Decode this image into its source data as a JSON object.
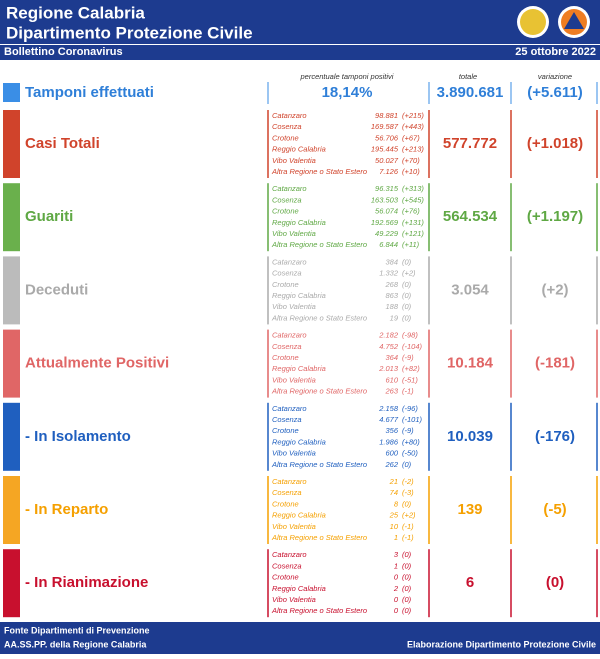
{
  "header": {
    "title_line1": "Regione Calabria",
    "title_line2": "Dipartimento Protezione Civile",
    "subtitle": "Bollettino Coronavirus",
    "date": "25 ottobre 2022"
  },
  "columns": {
    "pct_label": "percentuale tamponi positivi",
    "total_label": "totale",
    "variation_label": "variazione"
  },
  "tamponi": {
    "label": "Tamponi effettuati",
    "pct": "18,14%",
    "total": "3.890.681",
    "variation": "(+5.611)"
  },
  "sections": [
    {
      "label": "Casi Totali",
      "rows": [
        [
          "Catanzaro",
          "98.881",
          "(+215)"
        ],
        [
          "Cosenza",
          "169.587",
          "(+443)"
        ],
        [
          "Crotone",
          "56.706",
          "(+67)"
        ],
        [
          "Reggio Calabria",
          "195.445",
          "(+213)"
        ],
        [
          "Vibo Valentia",
          "50.027",
          "(+70)"
        ],
        [
          "Altra Regione o Stato Estero",
          "7.126",
          "(+10)"
        ]
      ],
      "total": "577.772",
      "variation": "(+1.018)"
    },
    {
      "label": "Guariti",
      "rows": [
        [
          "Catanzaro",
          "96.315",
          "(+313)"
        ],
        [
          "Cosenza",
          "163.503",
          "(+545)"
        ],
        [
          "Crotone",
          "56.074",
          "(+76)"
        ],
        [
          "Reggio Calabria",
          "192.569",
          "(+131)"
        ],
        [
          "Vibo Valentia",
          "49.229",
          "(+121)"
        ],
        [
          "Altra Regione o Stato Estero",
          "6.844",
          "(+11)"
        ]
      ],
      "total": "564.534",
      "variation": "(+1.197)"
    },
    {
      "label": "Deceduti",
      "rows": [
        [
          "Catanzaro",
          "384",
          "(0)"
        ],
        [
          "Cosenza",
          "1.332",
          "(+2)"
        ],
        [
          "Crotone",
          "268",
          "(0)"
        ],
        [
          "Reggio Calabria",
          "863",
          "(0)"
        ],
        [
          "Vibo Valentia",
          "188",
          "(0)"
        ],
        [
          "Altra Regione o Stato Estero",
          "19",
          "(0)"
        ]
      ],
      "total": "3.054",
      "variation": "(+2)"
    },
    {
      "label": "Attualmente Positivi",
      "rows": [
        [
          "Catanzaro",
          "2.182",
          "(-98)"
        ],
        [
          "Cosenza",
          "4.752",
          "(-104)"
        ],
        [
          "Crotone",
          "364",
          "(-9)"
        ],
        [
          "Reggio Calabria",
          "2.013",
          "(+82)"
        ],
        [
          "Vibo Valentia",
          "610",
          "(-51)"
        ],
        [
          "Altra Regione o Stato Estero",
          "263",
          "(-1)"
        ]
      ],
      "total": "10.184",
      "variation": "(-181)"
    },
    {
      "label": "- In Isolamento",
      "rows": [
        [
          "Catanzaro",
          "2.158",
          "(-96)"
        ],
        [
          "Cosenza",
          "4.677",
          "(-101)"
        ],
        [
          "Crotone",
          "356",
          "(-9)"
        ],
        [
          "Reggio Calabria",
          "1.986",
          "(+80)"
        ],
        [
          "Vibo Valentia",
          "600",
          "(-50)"
        ],
        [
          "Altra Regione o Stato Estero",
          "262",
          "(0)"
        ]
      ],
      "total": "10.039",
      "variation": "(-176)"
    },
    {
      "label": "- In Reparto",
      "rows": [
        [
          "Catanzaro",
          "21",
          "(-2)"
        ],
        [
          "Cosenza",
          "74",
          "(-3)"
        ],
        [
          "Crotone",
          "8",
          "(0)"
        ],
        [
          "Reggio Calabria",
          "25",
          "(+2)"
        ],
        [
          "Vibo Valentia",
          "10",
          "(-1)"
        ],
        [
          "Altra Regione o Stato Estero",
          "1",
          "(-1)"
        ]
      ],
      "total": "139",
      "variation": "(-5)"
    },
    {
      "label": "- In Rianimazione",
      "rows": [
        [
          "Catanzaro",
          "3",
          "(0)"
        ],
        [
          "Cosenza",
          "1",
          "(0)"
        ],
        [
          "Crotone",
          "0",
          "(0)"
        ],
        [
          "Reggio Calabria",
          "2",
          "(0)"
        ],
        [
          "Vibo Valentia",
          "0",
          "(0)"
        ],
        [
          "Altra Regione o Stato Estero",
          "0",
          "(0)"
        ]
      ],
      "total": "6",
      "variation": "(0)"
    }
  ],
  "footer": {
    "left_line1": "Fonte Dipartimenti di Prevenzione",
    "left_line2": "AA.SS.PP.  della Regione Calabria",
    "right": "Elaborazione Dipartimento Protezione Civile"
  }
}
